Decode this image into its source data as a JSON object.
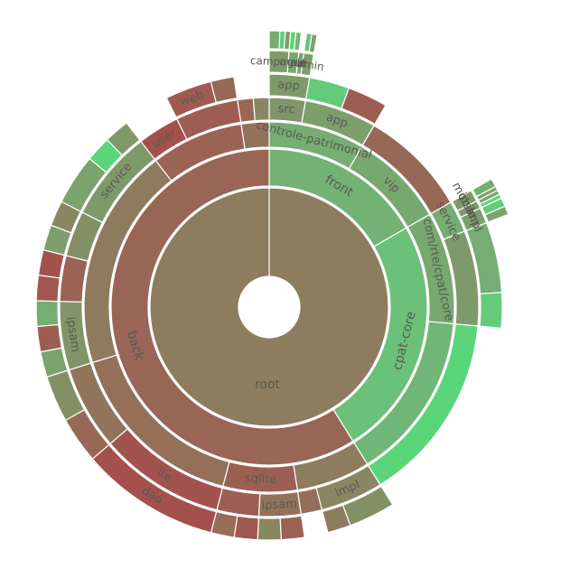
{
  "chart_data": {
    "type": "sunburst",
    "title": "",
    "colors": {
      "neutral": "#8d7d5e",
      "red": "#a8484a",
      "green": "#6bc07a",
      "bright_green": "#52e07a"
    },
    "root": {
      "name": "root",
      "labeled": true,
      "v": 0.0,
      "children": [
        {
          "name": "front",
          "labeled": true,
          "v": 0.55,
          "children": [
            {
              "name": "controle-patrimonial",
              "labeled": true,
              "v": 0.5,
              "children": [
                {
                  "name": "src",
                  "labeled": true,
                  "v": 0.25,
                  "children": [
                    {
                      "name": "app",
                      "labeled": true,
                      "v": 0.3,
                      "children": [
                        {
                          "name": "campagne",
                          "labeled": true,
                          "v": 0.3,
                          "w": 4,
                          "children": [
                            {
                              "name": "",
                              "w": 2,
                              "v": 0.5
                            },
                            {
                              "name": "",
                              "w": 1,
                              "v": 0.8
                            },
                            {
                              "name": "",
                              "w": 1,
                              "v": 0.3
                            }
                          ]
                        },
                        {
                          "name": "main",
                          "labeled": true,
                          "v": 0.45,
                          "w": 2,
                          "children": [
                            {
                              "name": "",
                              "w": 1,
                              "v": 0.9
                            },
                            {
                              "name": "",
                              "w": 1,
                              "v": 0.6
                            }
                          ]
                        },
                        {
                          "name": "ui",
                          "labeled": true,
                          "v": 0.4,
                          "w": 1
                        },
                        {
                          "name": "admin",
                          "labeled": true,
                          "v": 0.35,
                          "w": 2,
                          "children": [
                            {
                              "name": "",
                              "w": 1,
                              "v": 0.7
                            },
                            {
                              "name": "",
                              "w": 1,
                              "v": 0.4
                            }
                          ]
                        }
                      ]
                    }
                  ]
                },
                {
                  "name": "app",
                  "labeled": true,
                  "v": 0.35,
                  "w": 2,
                  "children": [
                    {
                      "name": "",
                      "w": 1,
                      "v": 0.8
                    },
                    {
                      "name": "",
                      "w": 1,
                      "v": -0.6
                    }
                  ]
                }
              ]
            },
            {
              "name": "vip",
              "labeled": true,
              "v": 0.45,
              "w": 1,
              "children": [
                {
                  "name": "",
                  "w": 1,
                  "v": -0.4
                }
              ]
            }
          ]
        },
        {
          "name": "cpat-core",
          "labeled": true,
          "v": 0.7,
          "children": [
            {
              "name": "com/rte/cpat/core",
              "labeled": true,
              "v": 0.45,
              "children": [
                {
                  "name": "service",
                  "labeled": true,
                  "v": 0.5,
                  "children": [
                    {
                      "name": "mobile",
                      "labeled": true,
                      "v": 0.3,
                      "w": 3,
                      "children": [
                        {
                          "name": "",
                          "w": 2,
                          "v": 0.5
                        },
                        {
                          "name": "",
                          "w": 1,
                          "v": 0.4
                        }
                      ]
                    },
                    {
                      "name": "ipsam",
                      "labeled": true,
                      "v": 0.3,
                      "w": 2,
                      "children": [
                        {
                          "name": "",
                          "w": 1,
                          "v": 0.4
                        },
                        {
                          "name": "",
                          "w": 1,
                          "v": 0.9
                        }
                      ]
                    },
                    {
                      "name": "impl",
                      "labeled": true,
                      "v": 0.35,
                      "w": 4,
                      "children": [
                        {
                          "name": "",
                          "w": 2,
                          "v": 0.8
                        },
                        {
                          "name": "",
                          "w": 2,
                          "v": 0.4
                        }
                      ]
                    }
                  ]
                },
                {
                  "name": "",
                  "v": 0.3,
                  "w": 3,
                  "children": [
                    {
                      "name": "",
                      "w": 2,
                      "v": 0.5
                    },
                    {
                      "name": "",
                      "w": 1,
                      "v": 0.8
                    }
                  ]
                }
              ]
            },
            {
              "name": "",
              "v": 0.6,
              "w": 1.5,
              "children": [
                {
                  "name": "",
                  "w": 1,
                  "v": 0.9
                }
              ]
            }
          ]
        },
        {
          "name": "back",
          "labeled": true,
          "v": -0.45,
          "children": [
            {
              "name": "",
              "v": 0.0,
              "w": 4,
              "children": [
                {
                  "name": "impl",
                  "labeled": true,
                  "v": 0.1,
                  "w": 3,
                  "children": [
                    {
                      "name": "",
                      "w": 2,
                      "v": 0.2
                    },
                    {
                      "name": "",
                      "w": 1,
                      "v": 0.0
                    }
                  ]
                },
                {
                  "name": "",
                  "v": -0.3,
                  "w": 1
                }
              ]
            },
            {
              "name": "sqlite",
              "labeled": true,
              "v": -0.55,
              "w": 4,
              "children": [
                {
                  "name": "ipsam",
                  "labeled": true,
                  "v": -0.2,
                  "w": 2,
                  "children": [
                    {
                      "name": "",
                      "w": 1,
                      "v": -0.5
                    },
                    {
                      "name": "",
                      "w": 1,
                      "v": 0.1
                    }
                  ]
                },
                {
                  "name": "",
                  "v": -0.6,
                  "w": 2,
                  "children": [
                    {
                      "name": "",
                      "w": 1,
                      "v": -0.7
                    },
                    {
                      "name": "",
                      "w": 1,
                      "v": -0.3
                    }
                  ]
                }
              ]
            },
            {
              "name": "",
              "v": -0.25,
              "w": 10,
              "children": [
                {
                  "name": "ite",
                  "labeled": true,
                  "v": -0.8,
                  "w": 6,
                  "children": [
                    {
                      "name": "dao",
                      "labeled": true,
                      "v": -0.85,
                      "w": 6
                    }
                  ]
                },
                {
                  "name": "",
                  "v": -0.15,
                  "w": 4,
                  "children": [
                    {
                      "name": "",
                      "w": 2,
                      "v": -0.4
                    },
                    {
                      "name": "",
                      "w": 2,
                      "v": 0.2
                    }
                  ]
                }
              ]
            },
            {
              "name": "",
              "v": -0.05,
              "w": 12,
              "children": [
                {
                  "name": "ipsam",
                  "labeled": true,
                  "v": 0.25,
                  "w": 3,
                  "children": [
                    {
                      "name": "",
                      "w": 1,
                      "v": 0.4
                    },
                    {
                      "name": "",
                      "w": 1,
                      "v": -0.6
                    },
                    {
                      "name": "",
                      "w": 1,
                      "v": 0.5
                    }
                  ]
                },
                {
                  "name": "",
                  "v": -0.5,
                  "w": 2,
                  "children": [
                    {
                      "name": "",
                      "w": 1,
                      "v": -0.7
                    },
                    {
                      "name": "",
                      "w": 1,
                      "v": -0.8
                    }
                  ]
                },
                {
                  "name": "",
                  "v": 0.2,
                  "w": 2,
                  "children": [
                    {
                      "name": "",
                      "w": 1,
                      "v": 0.35
                    },
                    {
                      "name": "",
                      "w": 1,
                      "v": 0.1
                    }
                  ]
                },
                {
                  "name": "service",
                  "labeled": true,
                  "v": 0.3,
                  "w": 4,
                  "children": [
                    {
                      "name": "",
                      "w": 2,
                      "v": 0.4
                    },
                    {
                      "name": "",
                      "w": 1,
                      "v": 0.9
                    },
                    {
                      "name": "",
                      "w": 1,
                      "v": 0.3
                    }
                  ]
                }
              ]
            },
            {
              "name": "",
              "v": -0.5,
              "w": 5,
              "children": [
                {
                  "name": "user",
                  "labeled": true,
                  "v": -0.85,
                  "w": 2
                },
                {
                  "name": "",
                  "v": -0.6,
                  "w": 3,
                  "children": [
                    {
                      "name": "web",
                      "labeled": true,
                      "v": -0.65,
                      "w": 2
                    },
                    {
                      "name": "",
                      "w": 1,
                      "v": -0.4
                    }
                  ]
                }
              ]
            },
            {
              "name": "",
              "v": -0.2,
              "w": 1.5,
              "children": [
                {
                  "name": "",
                  "w": 1,
                  "v": -0.4
                },
                {
                  "name": "",
                  "w": 1,
                  "v": 0.1
                }
              ]
            }
          ]
        }
      ]
    }
  }
}
